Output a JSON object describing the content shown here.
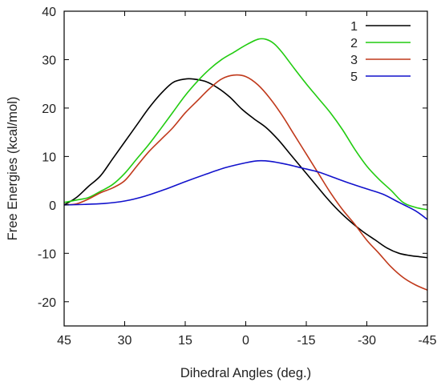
{
  "chart_data": {
    "type": "line",
    "title": "",
    "xlabel": "Dihedral Angles (deg.)",
    "ylabel": "Free Energies (kcal/mol)",
    "xlim": [
      45,
      -45
    ],
    "ylim": [
      -25,
      40
    ],
    "xticks": [
      45,
      30,
      15,
      0,
      -15,
      -30,
      -45
    ],
    "xtick_labels": [
      "45",
      "30",
      "15",
      "0",
      "-15",
      "-30",
      "-45"
    ],
    "yticks": [
      -20,
      -10,
      0,
      10,
      20,
      30,
      40
    ],
    "ytick_labels": [
      "-20",
      "-10",
      "0",
      "10",
      "20",
      "30",
      "40"
    ],
    "grid": false,
    "legend_position": "top-right",
    "series": [
      {
        "name": "1",
        "color": "#000000",
        "x": [
          45,
          42,
          39,
          36,
          33,
          30,
          27,
          24,
          21,
          18,
          15,
          13,
          10,
          7,
          4,
          1,
          -2,
          -5,
          -8,
          -11,
          -14,
          -17,
          -20,
          -23,
          -26,
          -29,
          -32,
          -35,
          -38,
          -41,
          -43,
          -45
        ],
        "y": [
          0,
          1.5,
          3.8,
          6,
          9.5,
          13,
          16.5,
          20,
          23,
          25.3,
          26,
          26,
          25.5,
          24.2,
          22.3,
          19.8,
          17.8,
          16,
          13.5,
          10.5,
          7.5,
          4.5,
          1.5,
          -1.2,
          -3.5,
          -5.5,
          -7.2,
          -8.9,
          -10,
          -10.5,
          -10.7,
          -10.9
        ]
      },
      {
        "name": "2",
        "color": "#22cc11",
        "x": [
          45,
          42,
          39,
          36,
          33,
          30,
          27,
          24,
          21,
          18,
          15,
          12,
          9,
          6,
          3,
          0,
          -3,
          -5,
          -7,
          -9,
          -12,
          -15,
          -18,
          -21,
          -24,
          -27,
          -30,
          -33,
          -36,
          -39,
          -42,
          -45
        ],
        "y": [
          0.5,
          1,
          1.5,
          2.8,
          4.2,
          6.5,
          9.5,
          12.5,
          15.8,
          19.2,
          22.6,
          25.5,
          28,
          30,
          31.5,
          33,
          34.2,
          34.2,
          33.3,
          31.5,
          28.2,
          25,
          22,
          19,
          15.5,
          11.5,
          8,
          5.3,
          3,
          0.5,
          -0.5,
          -1
        ]
      },
      {
        "name": "3",
        "color": "#c0391b",
        "x": [
          45,
          42,
          39,
          36,
          33,
          30,
          27,
          24,
          21,
          18,
          15,
          12,
          9,
          6,
          3,
          0,
          -3,
          -6,
          -9,
          -12,
          -15,
          -18,
          -21,
          -24,
          -27,
          -30,
          -33,
          -36,
          -39,
          -42,
          -45
        ],
        "y": [
          0,
          0.2,
          1.2,
          2.5,
          3.5,
          5,
          8,
          11,
          13.5,
          16,
          19,
          21.5,
          24,
          26,
          26.8,
          26.5,
          24.8,
          22,
          18.5,
          14.5,
          10.5,
          6.5,
          2.5,
          -1,
          -4,
          -7.3,
          -10,
          -12.8,
          -15,
          -16.5,
          -17.6
        ]
      },
      {
        "name": "5",
        "color": "#1111cc",
        "x": [
          45,
          40,
          35,
          30,
          25,
          20,
          15,
          10,
          5,
          0,
          -3,
          -6,
          -10,
          -14,
          -18,
          -22,
          -26,
          -30,
          -34,
          -38,
          -42,
          -45
        ],
        "y": [
          0,
          0.1,
          0.3,
          0.8,
          1.8,
          3.2,
          4.8,
          6.3,
          7.7,
          8.7,
          9.1,
          9,
          8.4,
          7.6,
          6.8,
          5.6,
          4.4,
          3.3,
          2.2,
          0.5,
          -1.2,
          -3
        ]
      }
    ]
  }
}
